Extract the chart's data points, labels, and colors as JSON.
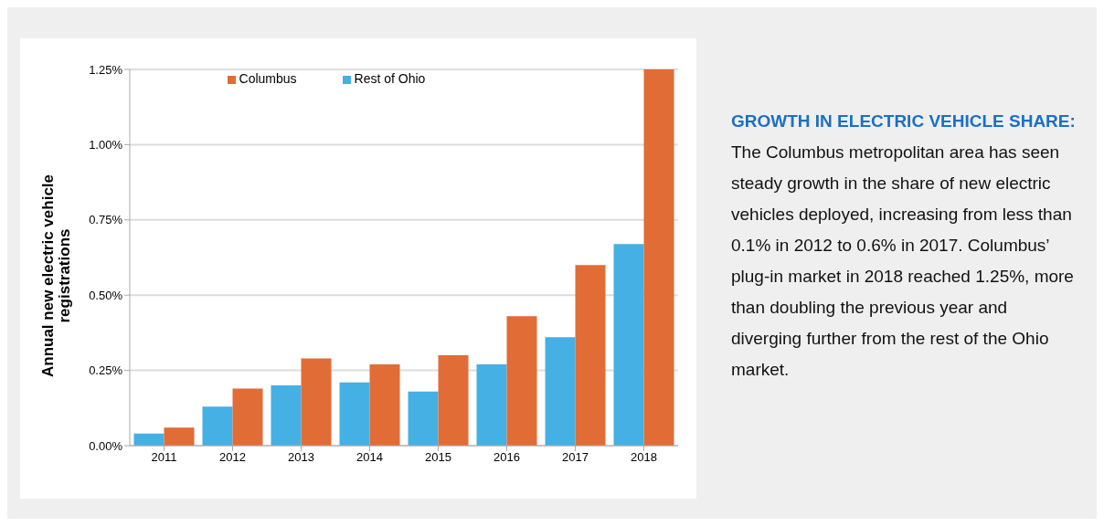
{
  "chart_data": {
    "type": "bar",
    "title": "GROWTH IN ELECTRIC VEHICLE SHARE:",
    "annotations": [
      "The Columbus metropolitan area has seen steady growth in the share of new electric vehicles deployed, increasing from less than 0.1% in 2012 to 0.6% in 2017. Columbus’ plug-in market in 2018 reached 1.25%, more than doubling the previous year and diverging further from the rest of the Ohio market."
    ],
    "ylabel": "Annual new electric vehicle registrations",
    "categories": [
      "2011",
      "2012",
      "2013",
      "2014",
      "2015",
      "2016",
      "2017",
      "2018"
    ],
    "series": [
      {
        "name": "Rest of Ohio",
        "color": "#45b0e3",
        "values": [
          0.04,
          0.13,
          0.2,
          0.21,
          0.18,
          0.27,
          0.36,
          0.67
        ]
      },
      {
        "name": "Columbus",
        "color": "#e16c36",
        "values": [
          0.06,
          0.19,
          0.29,
          0.27,
          0.3,
          0.43,
          0.6,
          1.25
        ]
      }
    ],
    "ylim": [
      0,
      1.25
    ],
    "yticks": [
      {
        "value": 0,
        "label": "0.00%"
      },
      {
        "value": 0.25,
        "label": "0.25%"
      },
      {
        "value": 0.5,
        "label": "0.50%"
      },
      {
        "value": 0.75,
        "label": "0.75%"
      },
      {
        "value": 1,
        "label": "1.00%"
      },
      {
        "value": 1.25,
        "label": "1.25%"
      }
    ],
    "grid": "y",
    "legend": "top"
  }
}
